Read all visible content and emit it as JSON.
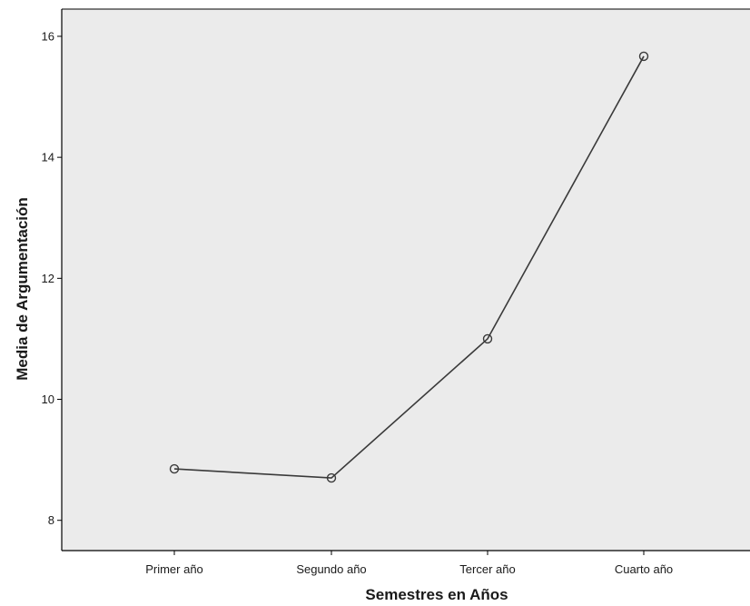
{
  "chart_data": {
    "type": "line",
    "title": "",
    "xlabel": "Semestres en Años",
    "ylabel": "Media de Argumentación",
    "categories": [
      "Primer año",
      "Segundo año",
      "Tercer año",
      "Cuarto año"
    ],
    "series": [
      {
        "values": [
          8.85,
          8.7,
          11.0,
          15.67
        ]
      }
    ],
    "ylim": [
      7.5,
      16.45
    ],
    "yticks": [
      8,
      10,
      12,
      14,
      16
    ],
    "grid": false,
    "legend": "none",
    "marker": "open-circle",
    "colors": {
      "plot_background": "#ebebeb",
      "line": "#3a3a3a",
      "axis": "#000000"
    }
  }
}
